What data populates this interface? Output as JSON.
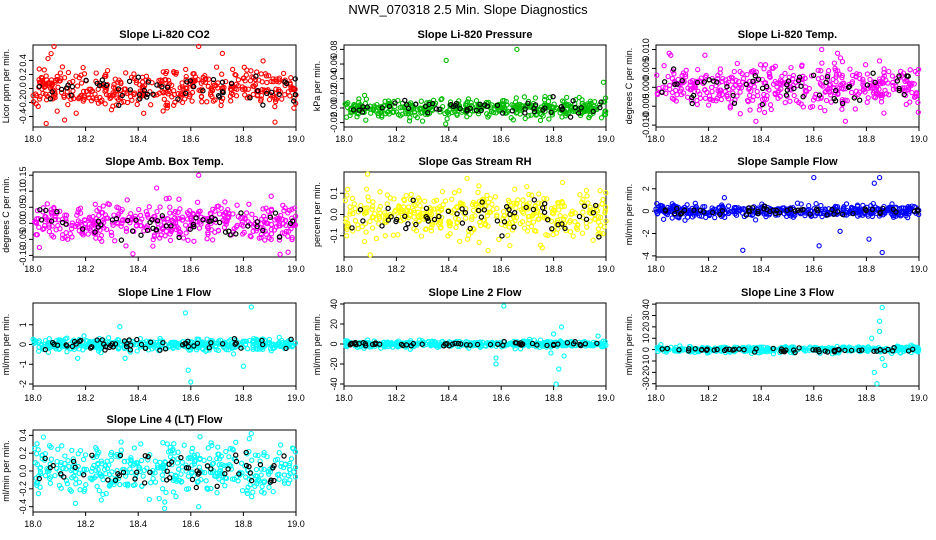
{
  "page": {
    "title": "NWR_070318  2.5 Min. Slope Diagnostics"
  },
  "chart_data": [
    {
      "id": "p1",
      "type": "scatter",
      "title": "Slope Li-820 CO2",
      "ylabel": "Licor ppm per min.",
      "color": "#ff0000",
      "xlim": [
        18.0,
        19.0
      ],
      "ylim": [
        -0.55,
        0.62
      ],
      "xticks": [
        "18.0",
        "18.2",
        "18.4",
        "18.6",
        "18.8",
        "19.0"
      ],
      "yticks": [
        -0.4,
        -0.2,
        0.0,
        0.2,
        0.4
      ],
      "ytick_labels": [
        "-0.4",
        "-0.2",
        "0.0",
        "0.2",
        "0.4"
      ],
      "spread": 0.14,
      "n_colored": 420,
      "n_black": 55,
      "seed": 11,
      "outliers": [
        [
          18.05,
          -0.5
        ],
        [
          18.08,
          0.6
        ],
        [
          18.63,
          0.6
        ],
        [
          18.12,
          -0.45
        ],
        [
          18.92,
          -0.48
        ],
        [
          18.72,
          0.5
        ]
      ]
    },
    {
      "id": "p2",
      "type": "scatter",
      "title": "Slope Li-820 Pressure",
      "ylabel": "kPa per min.",
      "color": "#00bb00",
      "xlim": [
        18.0,
        19.0
      ],
      "ylim": [
        -0.026,
        0.086
      ],
      "xticks": [
        "18.0",
        "18.2",
        "18.4",
        "18.6",
        "18.8",
        "19.0"
      ],
      "yticks": [
        -0.02,
        0.0,
        0.02,
        0.04,
        0.06,
        0.08
      ],
      "ytick_labels": [
        "-0.02",
        "0.00",
        "0.02",
        "0.04",
        "0.06",
        "0.08"
      ],
      "spread": 0.006,
      "n_colored": 420,
      "n_black": 55,
      "seed": 23,
      "outliers": [
        [
          18.39,
          0.065
        ],
        [
          18.66,
          0.08
        ],
        [
          18.99,
          0.035
        ],
        [
          18.3,
          -0.018
        ],
        [
          18.75,
          -0.017
        ]
      ]
    },
    {
      "id": "p3",
      "type": "scatter",
      "title": "Slope Li-820 Temp.",
      "ylabel": "degrees C per min.",
      "color": "#ff00ff",
      "xlim": [
        18.0,
        19.0
      ],
      "ylim": [
        -0.0105,
        0.0112
      ],
      "xticks": [
        "18.0",
        "18.2",
        "18.4",
        "18.6",
        "18.8",
        "19.0"
      ],
      "yticks": [
        -0.01,
        -0.005,
        0.0,
        0.005,
        0.01
      ],
      "ytick_labels": [
        "-0.010",
        "-0.005",
        "0.000",
        "0.005",
        "0.010"
      ],
      "spread": 0.0028,
      "n_colored": 420,
      "n_black": 55,
      "seed": 37,
      "outliers": [
        [
          18.38,
          -0.009
        ],
        [
          18.72,
          -0.009
        ],
        [
          18.63,
          0.01
        ],
        [
          18.69,
          0.009
        ],
        [
          18.05,
          0.009
        ]
      ]
    },
    {
      "id": "p4",
      "type": "scatter",
      "title": "Slope Amb. Box Temp.",
      "ylabel": "degrees C per min.",
      "color": "#ff00ff",
      "xlim": [
        18.0,
        19.0
      ],
      "ylim": [
        -0.105,
        0.16
      ],
      "xticks": [
        "18.0",
        "18.2",
        "18.4",
        "18.6",
        "18.8",
        "19.0"
      ],
      "yticks": [
        -0.1,
        -0.05,
        0.0,
        0.05,
        0.1,
        0.15
      ],
      "ytick_labels": [
        "-0.10",
        "-0.05",
        "0.00",
        "0.05",
        "0.10",
        "0.15"
      ],
      "spread": 0.03,
      "n_colored": 420,
      "n_black": 55,
      "seed": 41,
      "outliers": [
        [
          18.63,
          0.15
        ],
        [
          18.38,
          -0.095
        ],
        [
          18.97,
          -0.09
        ],
        [
          18.47,
          0.11
        ]
      ]
    },
    {
      "id": "p5",
      "type": "scatter",
      "title": "Slope Gas Stream RH",
      "ylabel": "percent per min.",
      "color": "#ffff00",
      "xlim": [
        18.0,
        19.0
      ],
      "ylim": [
        -0.2,
        0.2
      ],
      "xticks": [
        "18.0",
        "18.2",
        "18.4",
        "18.6",
        "18.8",
        "19.0"
      ],
      "yticks": [
        -0.1,
        0.0,
        0.1
      ],
      "ytick_labels": [
        "-0.1",
        "0.0",
        "0.1"
      ],
      "spread": 0.055,
      "n_colored": 420,
      "n_black": 55,
      "seed": 53,
      "outliers": [
        [
          18.1,
          -0.19
        ],
        [
          18.55,
          -0.17
        ],
        [
          18.09,
          0.19
        ],
        [
          18.47,
          0.17
        ]
      ]
    },
    {
      "id": "p6",
      "type": "scatter",
      "title": "Slope Sample Flow",
      "ylabel": "ml/min per min.",
      "color": "#0000ff",
      "xlim": [
        18.0,
        19.0
      ],
      "ylim": [
        -4.1,
        3.5
      ],
      "xticks": [
        "18.0",
        "18.2",
        "18.4",
        "18.6",
        "18.8",
        "19.0"
      ],
      "yticks": [
        -4,
        -2,
        0,
        2
      ],
      "ytick_labels": [
        "-4",
        "-2",
        "0",
        "2"
      ],
      "spread": 0.25,
      "n_colored": 430,
      "n_black": 55,
      "seed": 67,
      "outliers": [
        [
          18.33,
          -3.5
        ],
        [
          18.6,
          3
        ],
        [
          18.62,
          -3.1
        ],
        [
          18.83,
          2.5
        ],
        [
          18.85,
          3
        ],
        [
          18.81,
          -2.5
        ],
        [
          18.86,
          -3.7
        ],
        [
          18.26,
          1.2
        ],
        [
          18.7,
          -1.8
        ]
      ]
    },
    {
      "id": "p7",
      "type": "scatter",
      "title": "Slope Line 1 Flow",
      "ylabel": "ml/min per min.",
      "color": "#00ffff",
      "xlim": [
        18.0,
        19.0
      ],
      "ylim": [
        -2.1,
        2.1
      ],
      "xticks": [
        "18.0",
        "18.2",
        "18.4",
        "18.6",
        "18.8",
        "19.0"
      ],
      "yticks": [
        -2,
        -1,
        0,
        1
      ],
      "ytick_labels": [
        "-2",
        "-1",
        "0",
        "1"
      ],
      "spread": 0.15,
      "n_colored": 420,
      "n_black": 55,
      "seed": 71,
      "outliers": [
        [
          18.59,
          -1.3
        ],
        [
          18.6,
          -1.9
        ],
        [
          18.58,
          1.6
        ],
        [
          18.83,
          1.9
        ],
        [
          18.33,
          0.9
        ],
        [
          18.17,
          -0.7
        ],
        [
          18.8,
          -1.1
        ],
        [
          18.35,
          -0.7
        ]
      ]
    },
    {
      "id": "p8",
      "type": "scatter",
      "title": "Slope Line 2 Flow",
      "ylabel": "ml/min per min.",
      "color": "#00ffff",
      "xlim": [
        18.0,
        19.0
      ],
      "ylim": [
        -42,
        41
      ],
      "xticks": [
        "18.0",
        "18.2",
        "18.4",
        "18.6",
        "18.8",
        "19.0"
      ],
      "yticks": [
        -40,
        -20,
        0,
        20,
        40
      ],
      "ytick_labels": [
        "-40",
        "-20",
        "0",
        "20",
        "40"
      ],
      "spread": 1.6,
      "n_colored": 420,
      "n_black": 55,
      "seed": 83,
      "outliers": [
        [
          18.61,
          38
        ],
        [
          18.58,
          -20
        ],
        [
          18.58,
          -14
        ],
        [
          18.83,
          17
        ],
        [
          18.82,
          -25
        ],
        [
          18.81,
          -40
        ],
        [
          18.8,
          10
        ],
        [
          18.79,
          -9
        ],
        [
          18.84,
          -12
        ],
        [
          18.97,
          8
        ]
      ]
    },
    {
      "id": "p9",
      "type": "scatter",
      "title": "Slope Line 3 Flow",
      "ylabel": "ml/min per min.",
      "color": "#00ffff",
      "xlim": [
        18.0,
        19.0
      ],
      "ylim": [
        -32,
        41
      ],
      "xticks": [
        "18.0",
        "18.2",
        "18.4",
        "18.6",
        "18.8",
        "19.0"
      ],
      "yticks": [
        -30,
        -20,
        -10,
        0,
        10,
        20,
        30,
        40
      ],
      "ytick_labels": [
        "-30",
        "-20",
        "-10",
        "0",
        "10",
        "20",
        "30",
        "40"
      ],
      "spread": 1.4,
      "n_colored": 420,
      "n_black": 55,
      "seed": 97,
      "outliers": [
        [
          18.84,
          -30
        ],
        [
          18.86,
          37
        ],
        [
          18.85,
          25
        ],
        [
          18.82,
          10
        ],
        [
          18.87,
          -14
        ],
        [
          18.83,
          -20
        ],
        [
          18.85,
          16
        ],
        [
          18.86,
          -8
        ],
        [
          18.97,
          4
        ]
      ]
    },
    {
      "id": "p10",
      "type": "scatter",
      "title": "Slope Line 4 (LT) Flow",
      "ylabel": "ml/min per min.",
      "color": "#00ffff",
      "xlim": [
        18.0,
        19.0
      ],
      "ylim": [
        -0.46,
        0.46
      ],
      "xticks": [
        "18.0",
        "18.2",
        "18.4",
        "18.6",
        "18.8",
        "19.0"
      ],
      "yticks": [
        -0.4,
        -0.2,
        0.0,
        0.2,
        0.4
      ],
      "ytick_labels": [
        "-0.4",
        "-0.2",
        "0.0",
        "0.2",
        "0.4"
      ],
      "spread": 0.14,
      "n_colored": 420,
      "n_black": 55,
      "seed": 109,
      "outliers": [
        [
          18.83,
          0.42
        ],
        [
          18.63,
          -0.4
        ],
        [
          18.04,
          0.38
        ],
        [
          18.5,
          -0.42
        ],
        [
          18.99,
          0.25
        ]
      ]
    }
  ]
}
